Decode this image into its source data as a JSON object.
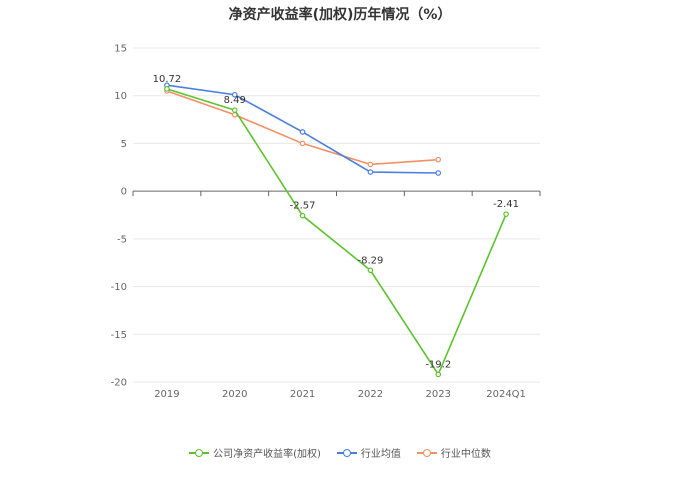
{
  "chart_data": {
    "type": "line",
    "title": "净资产收益率(加权)历年情况（%）",
    "categories": [
      "2019",
      "2020",
      "2021",
      "2022",
      "2023",
      "2024Q1"
    ],
    "ylim": [
      -20,
      15
    ],
    "yticks": [
      15,
      10,
      5,
      0,
      -5,
      -10,
      -15,
      -20
    ],
    "grid": true,
    "legend_position": "bottom",
    "series": [
      {
        "name": "公司净资产收益率(加权)",
        "color": "#5cc22e",
        "values": [
          10.72,
          8.49,
          -2.57,
          -8.29,
          -19.2,
          -2.41
        ],
        "labels": [
          "10.72",
          "8.49",
          "-2.57",
          "-8.29",
          "-19.2",
          "-2.41"
        ]
      },
      {
        "name": "行业均值",
        "color": "#4a7fe0",
        "values": [
          11.1,
          10.1,
          6.2,
          2.0,
          1.9,
          null
        ]
      },
      {
        "name": "行业中位数",
        "color": "#f29066",
        "values": [
          10.5,
          8.0,
          5.0,
          2.8,
          3.3,
          null
        ]
      }
    ]
  }
}
